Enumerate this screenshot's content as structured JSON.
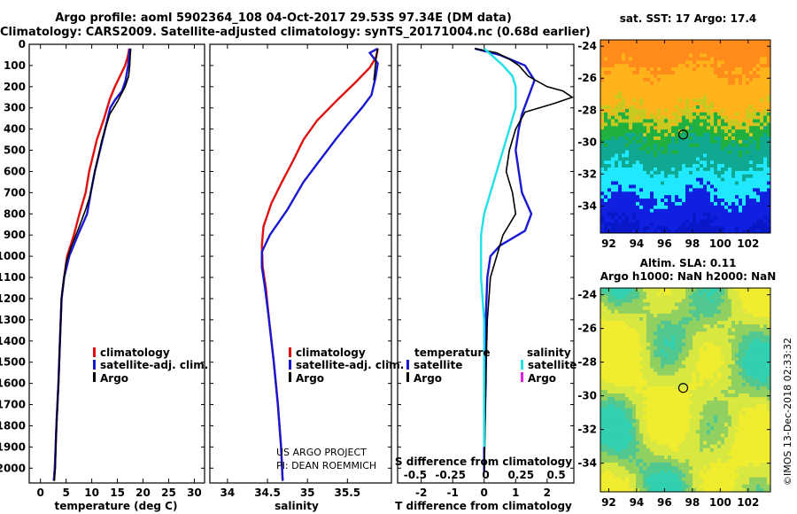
{
  "titles": {
    "line1": "Argo profile: aoml 5902364_108 04-Oct-2017 29.53S 97.34E (DM data)",
    "line2": "Climatology: CARS2009. Satellite-adjusted climatology: synTS_20171004.nc (0.68d earlier)"
  },
  "colors": {
    "climatology": "#e01010",
    "satellite": "#1818d0",
    "argo": "#000000",
    "s_satellite": "#20e0e8",
    "s_argo": "#e020e0"
  },
  "depth_axis": {
    "ticks": [
      0,
      100,
      200,
      300,
      400,
      500,
      600,
      700,
      800,
      900,
      1000,
      1100,
      1200,
      1300,
      1400,
      1500,
      1600,
      1700,
      1800,
      1900,
      2000
    ],
    "ylim": [
      0,
      2070
    ]
  },
  "chart_data": [
    {
      "type": "line",
      "xlabel": "temperature (deg C)",
      "xticks": [
        "0",
        "5",
        "10",
        "15",
        "20",
        "25",
        "30"
      ],
      "xlim": [
        -2.2,
        32
      ],
      "legend": [
        "climatology",
        "satellite-adj. clim.",
        "Argo"
      ],
      "series": [
        {
          "name": "climatology",
          "points": [
            [
              17.3,
              20
            ],
            [
              17.1,
              50
            ],
            [
              16.5,
              100
            ],
            [
              14.5,
              200
            ],
            [
              13.5,
              260
            ],
            [
              12.4,
              350
            ],
            [
              11.0,
              450
            ],
            [
              9.5,
              600
            ],
            [
              8.8,
              700
            ],
            [
              7.6,
              800
            ],
            [
              6.5,
              900
            ],
            [
              5.2,
              1000
            ],
            [
              4.6,
              1100
            ],
            [
              4.1,
              1200
            ],
            [
              3.8,
              1400
            ],
            [
              3.5,
              1600
            ],
            [
              3.1,
              1800
            ],
            [
              2.8,
              2000
            ],
            [
              2.6,
              2060
            ]
          ]
        },
        {
          "name": "satellite-adj. clim.",
          "points": [
            [
              17.4,
              20
            ],
            [
              17.3,
              50
            ],
            [
              17.1,
              100
            ],
            [
              16.6,
              170
            ],
            [
              15.9,
              220
            ],
            [
              14.6,
              260
            ],
            [
              13.6,
              300
            ],
            [
              12.6,
              400
            ],
            [
              11.6,
              500
            ],
            [
              10.6,
              600
            ],
            [
              9.8,
              700
            ],
            [
              9.1,
              800
            ],
            [
              7.3,
              900
            ],
            [
              5.6,
              1000
            ],
            [
              4.6,
              1100
            ],
            [
              4.1,
              1200
            ],
            [
              3.8,
              1400
            ],
            [
              3.5,
              1600
            ],
            [
              3.1,
              1800
            ],
            [
              2.8,
              2000
            ],
            [
              2.6,
              2060
            ]
          ]
        },
        {
          "name": "Argo",
          "points": [
            [
              17.6,
              20
            ],
            [
              17.5,
              50
            ],
            [
              17.4,
              100
            ],
            [
              17.2,
              150
            ],
            [
              16.5,
              200
            ],
            [
              15.0,
              270
            ],
            [
              13.5,
              330
            ],
            [
              12.0,
              450
            ],
            [
              10.6,
              600
            ],
            [
              10.2,
              650
            ],
            [
              9.6,
              720
            ],
            [
              8.8,
              780
            ],
            [
              7.4,
              870
            ],
            [
              5.9,
              960
            ],
            [
              5.0,
              1030
            ],
            [
              4.6,
              1100
            ],
            [
              4.1,
              1200
            ],
            [
              3.8,
              1400
            ],
            [
              3.5,
              1600
            ],
            [
              3.1,
              1800
            ],
            [
              2.9,
              2000
            ],
            [
              2.7,
              2060
            ]
          ]
        }
      ]
    },
    {
      "type": "line",
      "xlabel": "salinity",
      "xticks": [
        "34",
        "34.5",
        "35",
        "35.5"
      ],
      "xlim": [
        33.78,
        36.05
      ],
      "legend": [
        "climatology",
        "satellite-adj. clim.",
        "Argo"
      ],
      "series": [
        {
          "name": "climatology",
          "points": [
            [
              35.88,
              20
            ],
            [
              35.86,
              60
            ],
            [
              35.78,
              110
            ],
            [
              35.6,
              180
            ],
            [
              35.38,
              260
            ],
            [
              35.12,
              360
            ],
            [
              34.95,
              450
            ],
            [
              34.82,
              550
            ],
            [
              34.68,
              650
            ],
            [
              34.55,
              750
            ],
            [
              34.45,
              860
            ],
            [
              34.43,
              950
            ],
            [
              34.44,
              1050
            ],
            [
              34.48,
              1150
            ],
            [
              34.52,
              1300
            ],
            [
              34.58,
              1500
            ],
            [
              34.63,
              1700
            ],
            [
              34.67,
              1900
            ],
            [
              34.69,
              2060
            ]
          ]
        },
        {
          "name": "satellite-adj. clim.",
          "points": [
            [
              35.88,
              20
            ],
            [
              35.78,
              40
            ],
            [
              35.88,
              90
            ],
            [
              35.85,
              160
            ],
            [
              35.8,
              240
            ],
            [
              35.68,
              300
            ],
            [
              35.5,
              380
            ],
            [
              35.35,
              450
            ],
            [
              35.15,
              550
            ],
            [
              34.95,
              650
            ],
            [
              34.75,
              780
            ],
            [
              34.53,
              900
            ],
            [
              34.43,
              980
            ],
            [
              34.43,
              1050
            ],
            [
              34.47,
              1150
            ],
            [
              34.52,
              1300
            ],
            [
              34.58,
              1500
            ],
            [
              34.63,
              1700
            ],
            [
              34.67,
              1900
            ],
            [
              34.69,
              2060
            ]
          ]
        },
        {
          "name": "Argo",
          "points": [
            [
              35.88,
              20
            ],
            [
              35.86,
              60
            ],
            [
              35.85,
              100
            ],
            [
              35.84,
              140
            ],
            [
              35.83,
              170
            ]
          ]
        }
      ]
    },
    {
      "type": "line",
      "xlabel": "T difference from climatology",
      "secondary_xlabel": "S difference from climatology",
      "xticks": [
        "-2",
        "-1",
        "0",
        "1",
        "2"
      ],
      "secondary_xticks": [
        "-0.5",
        "-0.25",
        "0",
        "0.25",
        "0.5"
      ],
      "xlim": [
        -2.75,
        2.85
      ],
      "legend_temperature_title": "temperature",
      "legend_salinity_title": "salinity",
      "legend_temperature": [
        "satellite",
        "Argo"
      ],
      "legend_salinity": [
        "satellite",
        "Argo"
      ],
      "series": [
        {
          "name": "temperature satellite",
          "points": [
            [
              -0.3,
              20
            ],
            [
              0.5,
              50
            ],
            [
              1.3,
              100
            ],
            [
              1.6,
              170
            ],
            [
              1.4,
              250
            ],
            [
              1.2,
              330
            ],
            [
              1.1,
              400
            ],
            [
              1.0,
              500
            ],
            [
              1.1,
              600
            ],
            [
              1.2,
              700
            ],
            [
              1.5,
              800
            ],
            [
              1.3,
              880
            ],
            [
              0.5,
              950
            ],
            [
              0.2,
              1000
            ],
            [
              0.1,
              1100
            ],
            [
              0.05,
              1300
            ],
            [
              0.05,
              1600
            ],
            [
              0.0,
              1900
            ],
            [
              0.0,
              2020
            ]
          ]
        },
        {
          "name": "temperature Argo",
          "points": [
            [
              -0.3,
              20
            ],
            [
              0.4,
              40
            ],
            [
              0.8,
              70
            ],
            [
              1.1,
              100
            ],
            [
              1.4,
              150
            ],
            [
              2.0,
              200
            ],
            [
              2.5,
              220
            ],
            [
              2.8,
              250
            ],
            [
              2.2,
              280
            ],
            [
              1.3,
              320
            ],
            [
              1.0,
              400
            ],
            [
              0.8,
              500
            ],
            [
              0.7,
              600
            ],
            [
              0.9,
              700
            ],
            [
              1.0,
              800
            ],
            [
              0.6,
              900
            ],
            [
              0.4,
              1000
            ],
            [
              0.2,
              1100
            ],
            [
              0.1,
              1300
            ],
            [
              0.05,
              1600
            ],
            [
              0.02,
              1900
            ],
            [
              0.0,
              2020
            ]
          ]
        },
        {
          "name": "salinity satellite",
          "points": [
            [
              0.0,
              20
            ],
            [
              0.3,
              60
            ],
            [
              0.6,
              100
            ],
            [
              0.9,
              150
            ],
            [
              1.0,
              200
            ],
            [
              1.0,
              300
            ],
            [
              0.8,
              400
            ],
            [
              0.6,
              500
            ],
            [
              0.4,
              600
            ],
            [
              0.2,
              700
            ],
            [
              0.0,
              800
            ],
            [
              -0.1,
              900
            ],
            [
              -0.1,
              1000
            ],
            [
              -0.1,
              1100
            ],
            [
              -0.05,
              1200
            ],
            [
              0.0,
              1300
            ],
            [
              0.0,
              1500
            ],
            [
              0.0,
              1800
            ],
            [
              0.0,
              1900
            ]
          ]
        }
      ]
    }
  ],
  "credit": {
    "line1": "US ARGO PROJECT",
    "line2": "PI: DEAN ROEMMICH"
  },
  "maps": [
    {
      "title": "sat. SST: 17 Argo: 17.4",
      "yticks": [
        "-24",
        "-26",
        "-28",
        "-30",
        "-32",
        "-34"
      ],
      "xticks": [
        "92",
        "94",
        "96",
        "98",
        "100",
        "102"
      ],
      "lat_range": [
        -35.7,
        -23.6
      ],
      "lon_range": [
        91.4,
        103.6
      ],
      "marker": [
        97.34,
        -29.53
      ]
    },
    {
      "title_line1": "Altim. SLA: 0.11",
      "title_line2": "Argo h1000: NaN h2000: NaN",
      "yticks": [
        "-24",
        "-26",
        "-28",
        "-30",
        "-32",
        "-34"
      ],
      "xticks": [
        "92",
        "94",
        "96",
        "98",
        "100",
        "102"
      ],
      "lat_range": [
        -35.7,
        -23.6
      ],
      "lon_range": [
        91.4,
        103.6
      ],
      "marker": [
        97.34,
        -29.53
      ]
    }
  ],
  "side_stamp": "©IMOS 13-Dec-2018 02:33:32"
}
